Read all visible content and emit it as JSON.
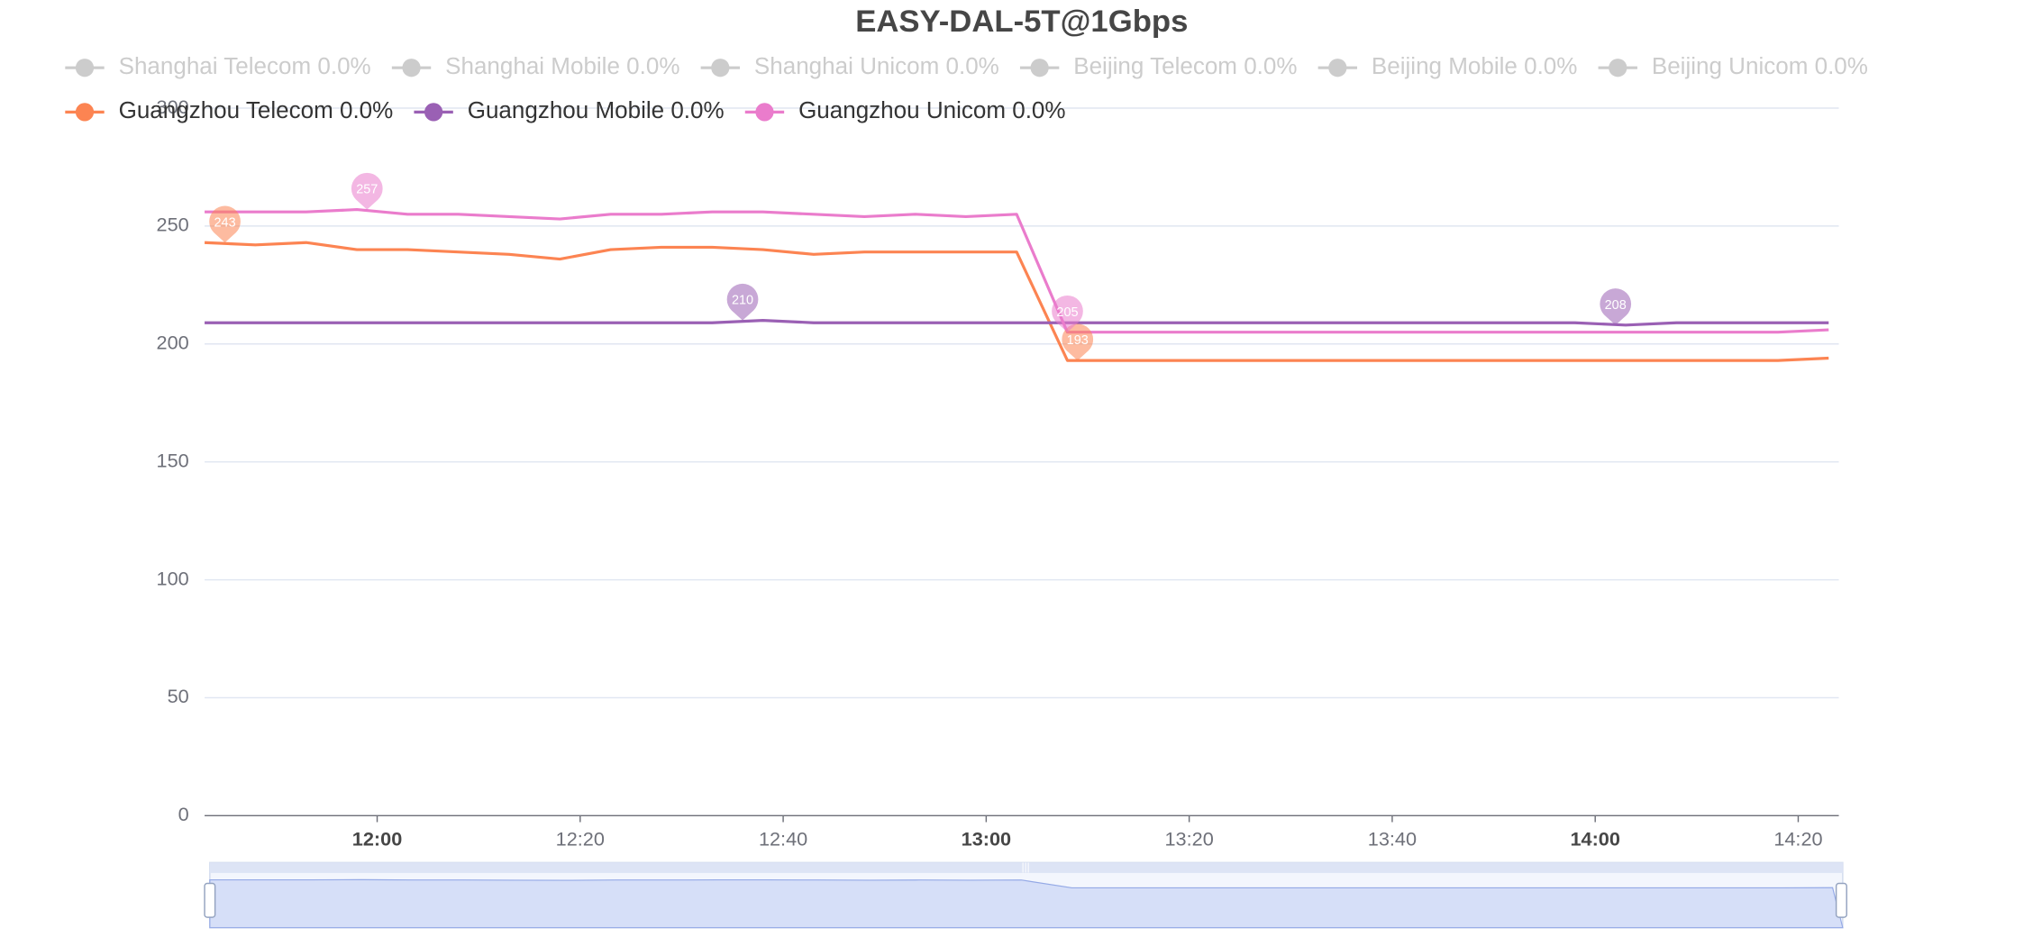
{
  "chart_data": {
    "type": "line",
    "title": "EASY-DAL-5T@1Gbps",
    "x": [
      "11:43",
      "11:48",
      "11:53",
      "11:58",
      "12:03",
      "12:08",
      "12:13",
      "12:18",
      "12:23",
      "12:28",
      "12:33",
      "12:38",
      "12:43",
      "12:48",
      "12:53",
      "12:58",
      "13:03",
      "13:08",
      "13:13",
      "13:18",
      "13:23",
      "13:28",
      "13:33",
      "13:38",
      "13:43",
      "13:48",
      "13:53",
      "13:58",
      "14:03",
      "14:08",
      "14:13",
      "14:18",
      "14:23"
    ],
    "xlim": [
      "11:43",
      "14:24"
    ],
    "xticks": [
      "12:00",
      "12:20",
      "12:40",
      "13:00",
      "13:20",
      "13:40",
      "14:00",
      "14:20"
    ],
    "ylim": [
      0,
      300
    ],
    "yticks": [
      0,
      50,
      100,
      150,
      200,
      250,
      300
    ],
    "grid": true,
    "series": [
      {
        "name": "Shanghai Telecom 0.0%",
        "color": "#cccccc",
        "selected": false
      },
      {
        "name": "Shanghai Mobile 0.0%",
        "color": "#cccccc",
        "selected": false
      },
      {
        "name": "Shanghai Unicom 0.0%",
        "color": "#cccccc",
        "selected": false
      },
      {
        "name": "Beijing Telecom 0.0%",
        "color": "#cccccc",
        "selected": false
      },
      {
        "name": "Beijing Mobile 0.0%",
        "color": "#cccccc",
        "selected": false
      },
      {
        "name": "Beijing Unicom 0.0%",
        "color": "#cccccc",
        "selected": false
      },
      {
        "name": "Guangzhou Telecom 0.0%",
        "color": "#fc8452",
        "selected": true,
        "values": [
          243,
          242,
          243,
          240,
          240,
          239,
          238,
          236,
          240,
          241,
          241,
          240,
          238,
          239,
          239,
          239,
          239,
          193,
          193,
          193,
          193,
          193,
          193,
          193,
          193,
          193,
          193,
          193,
          193,
          193,
          193,
          193,
          194
        ],
        "mark_points": [
          {
            "x": "11:45",
            "value": 243
          },
          {
            "x": "13:09",
            "value": 193
          }
        ]
      },
      {
        "name": "Guangzhou Mobile 0.0%",
        "color": "#9a60b4",
        "selected": true,
        "values": [
          209,
          209,
          209,
          209,
          209,
          209,
          209,
          209,
          209,
          209,
          209,
          210,
          209,
          209,
          209,
          209,
          209,
          209,
          209,
          209,
          209,
          209,
          209,
          209,
          209,
          209,
          209,
          209,
          208,
          209,
          209,
          209,
          209
        ],
        "mark_points": [
          {
            "x": "12:36",
            "value": 210
          },
          {
            "x": "14:02",
            "value": 208
          }
        ]
      },
      {
        "name": "Guangzhou Unicom 0.0%",
        "color": "#ea7ccc",
        "selected": true,
        "values": [
          256,
          256,
          256,
          257,
          255,
          255,
          254,
          253,
          255,
          255,
          256,
          256,
          255,
          254,
          255,
          254,
          255,
          205,
          205,
          205,
          205,
          205,
          205,
          205,
          205,
          205,
          205,
          205,
          205,
          205,
          205,
          205,
          206
        ],
        "mark_points": [
          {
            "x": "11:59",
            "value": 257
          },
          {
            "x": "13:08",
            "value": 205
          }
        ]
      }
    ]
  }
}
